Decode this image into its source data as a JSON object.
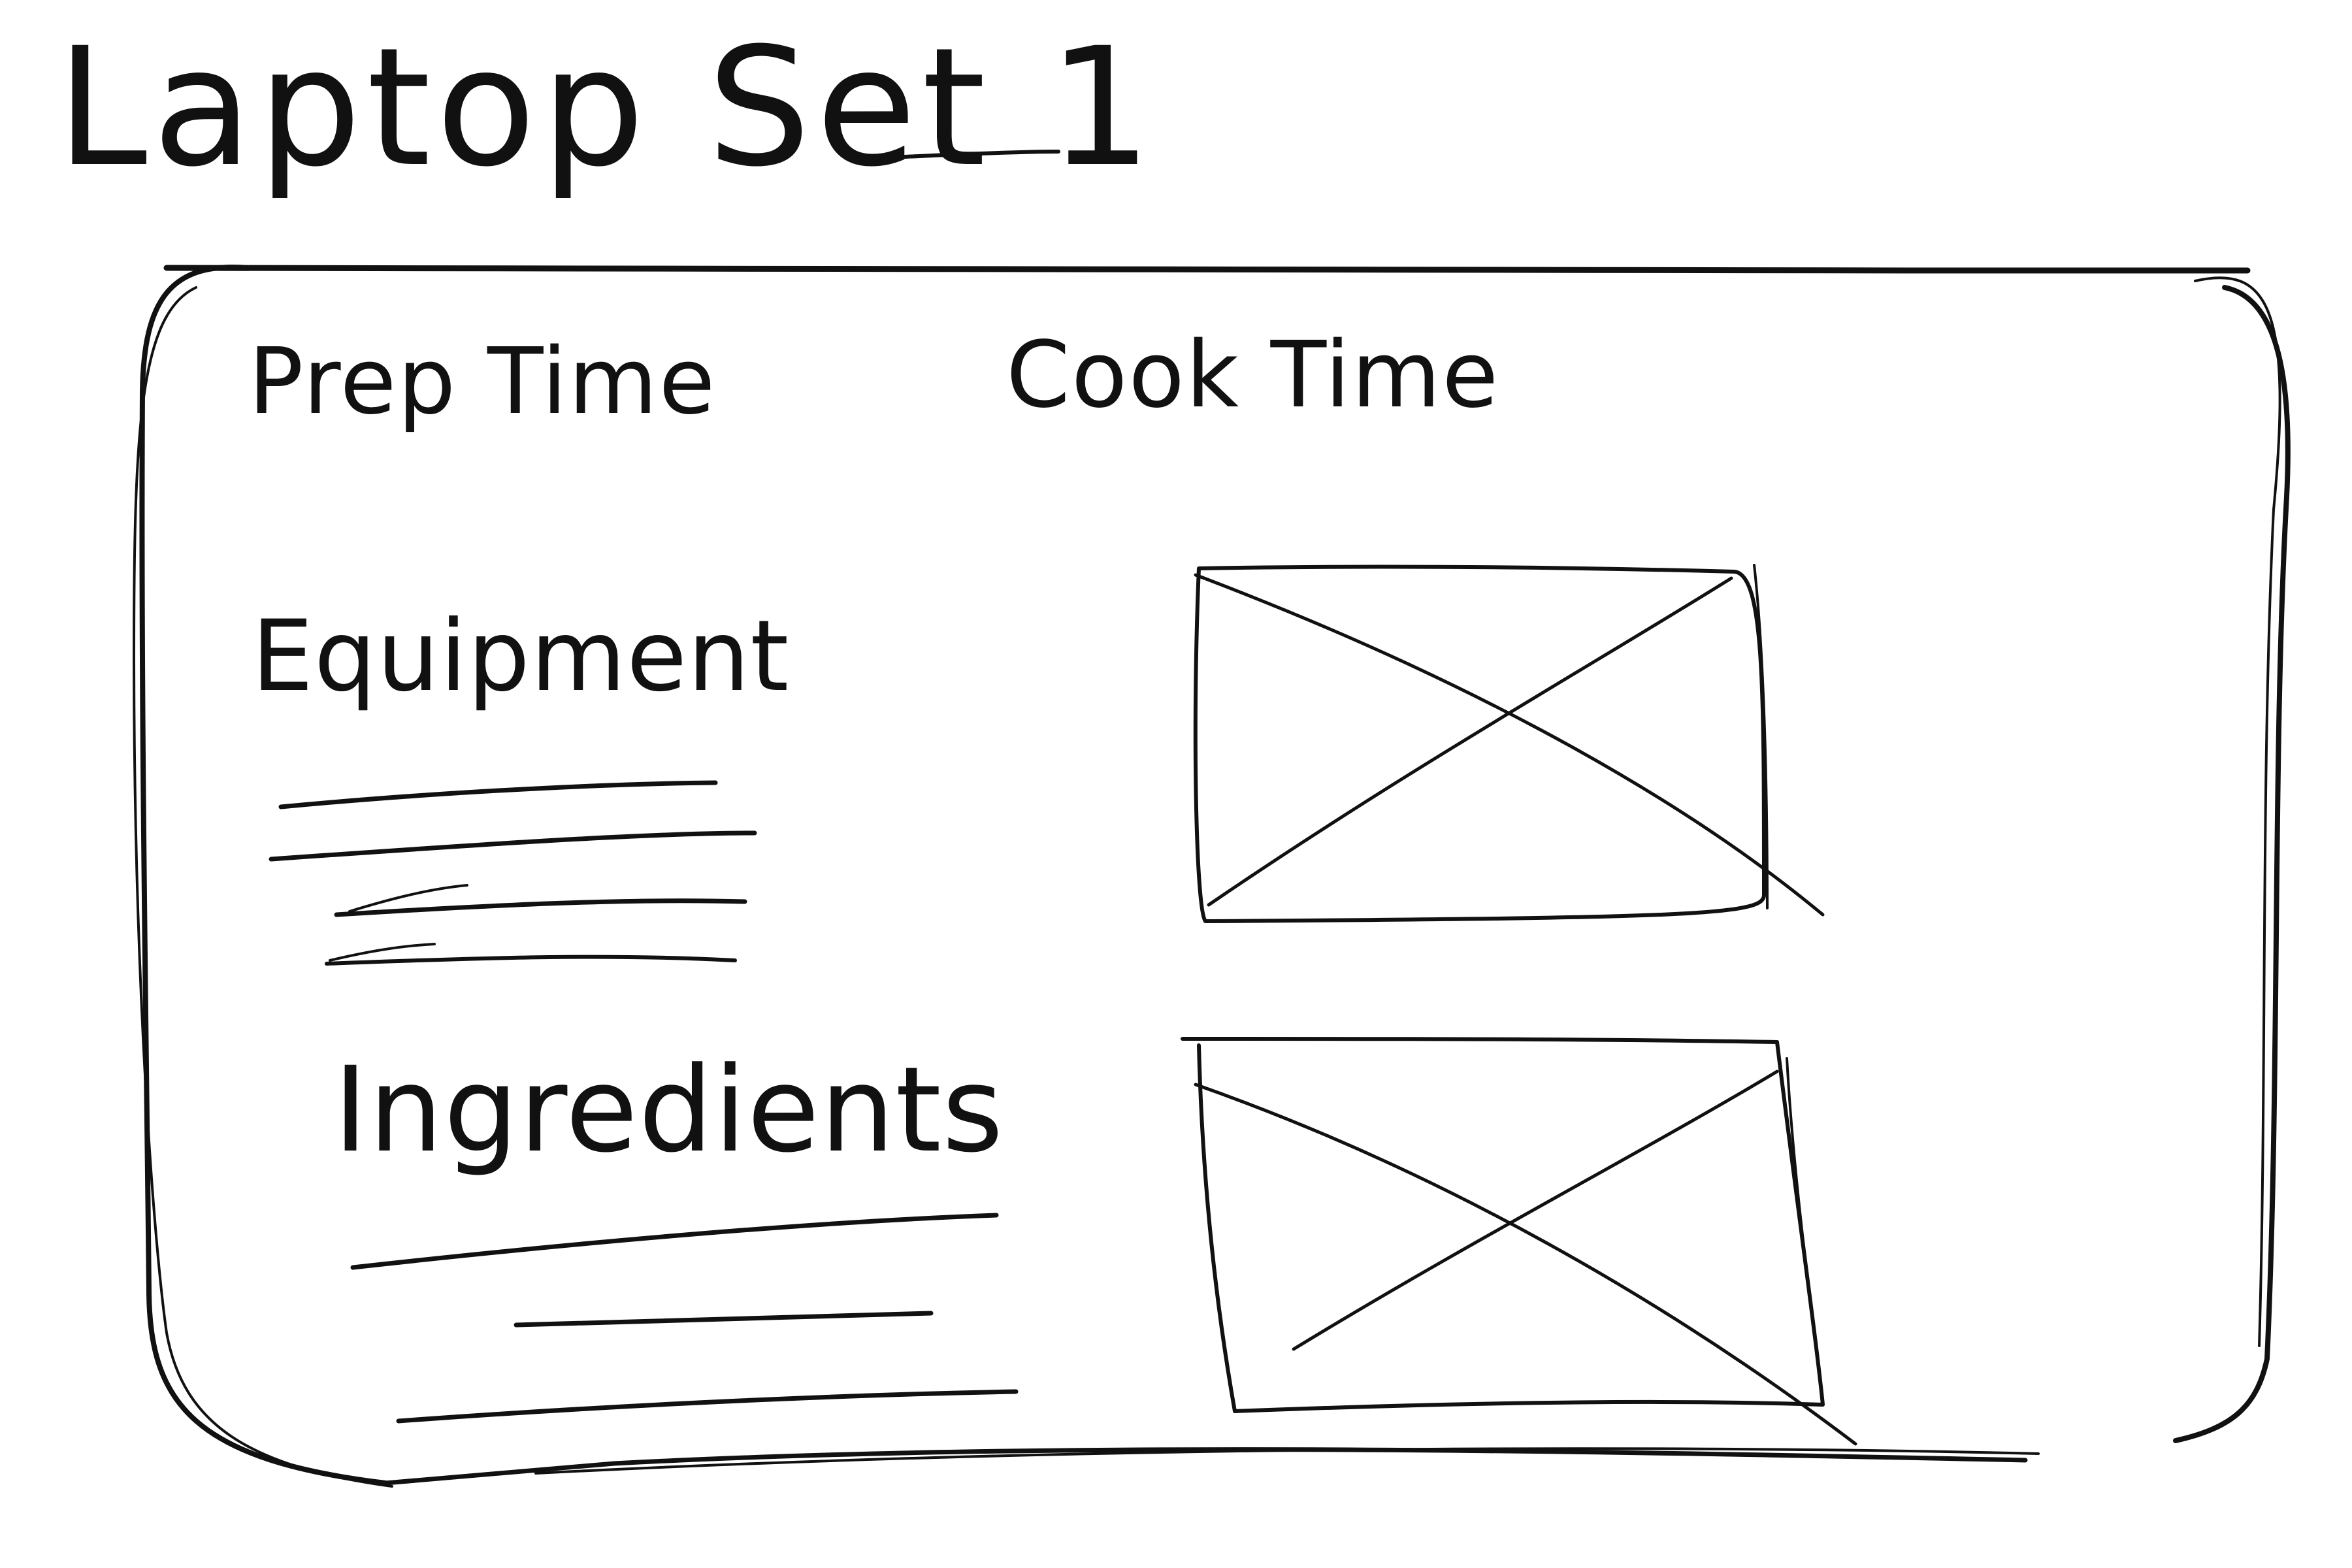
{
  "sketch": {
    "title": "Laptop Set 1",
    "header": {
      "prep_time_label": "Prep Time",
      "cook_time_label": "Cook Time"
    },
    "sections": {
      "equipment_label": "Equipment",
      "ingredients_label": "Ingredients"
    }
  },
  "colors": {
    "ink": "#111111",
    "paper": "#ffffff"
  }
}
